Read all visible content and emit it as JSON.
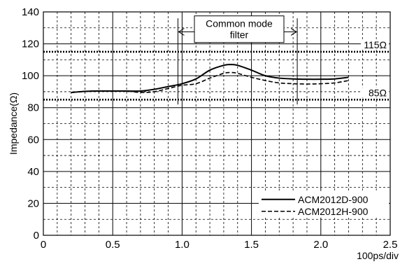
{
  "chart_data": {
    "type": "line",
    "xlabel": "100ps/div",
    "ylabel": "Impedance(Ω)",
    "xlim": [
      0,
      2.5
    ],
    "ylim": [
      0,
      140
    ],
    "x_ticks": [
      "0",
      "0.5",
      "1.0",
      "1.5",
      "2.0",
      "2.5"
    ],
    "y_ticks": [
      "0",
      "20",
      "40",
      "60",
      "80",
      "100",
      "120",
      "140"
    ],
    "grid": true,
    "legend_position": "bottom-right",
    "series": [
      {
        "name": "ACM2012D-900",
        "style": "solid",
        "x": [
          0.2,
          0.3,
          0.4,
          0.5,
          0.6,
          0.7,
          0.8,
          0.9,
          1.0,
          1.1,
          1.2,
          1.3,
          1.35,
          1.4,
          1.5,
          1.6,
          1.7,
          1.8,
          1.9,
          2.0,
          2.1,
          2.2
        ],
        "y": [
          89.5,
          90.2,
          90.4,
          90.4,
          90.4,
          90.4,
          91.5,
          93.2,
          95.0,
          98.0,
          103.5,
          106.5,
          107.0,
          106.5,
          103.5,
          100.0,
          98.5,
          98.0,
          97.8,
          97.8,
          98.0,
          99.0
        ]
      },
      {
        "name": "ACM2012H-900",
        "style": "dashed",
        "x": [
          0.2,
          0.3,
          0.4,
          0.5,
          0.6,
          0.7,
          0.8,
          0.9,
          1.0,
          1.1,
          1.2,
          1.3,
          1.35,
          1.4,
          1.5,
          1.6,
          1.7,
          1.8,
          1.9,
          2.0,
          2.1,
          2.2
        ],
        "y": [
          89.5,
          90.2,
          90.4,
          90.4,
          90.4,
          89.5,
          90.0,
          92.0,
          94.0,
          95.0,
          98.5,
          101.5,
          102.0,
          101.5,
          99.0,
          97.0,
          95.5,
          95.0,
          94.8,
          95.0,
          95.5,
          97.0
        ]
      }
    ],
    "reference_lines": [
      {
        "label": "115Ω",
        "y": 115
      },
      {
        "label": "85Ω",
        "y": 85
      }
    ],
    "annotation": {
      "label_line1": "Common mode",
      "label_line2": "filter",
      "x_start": 0.97,
      "x_end": 1.83
    }
  }
}
